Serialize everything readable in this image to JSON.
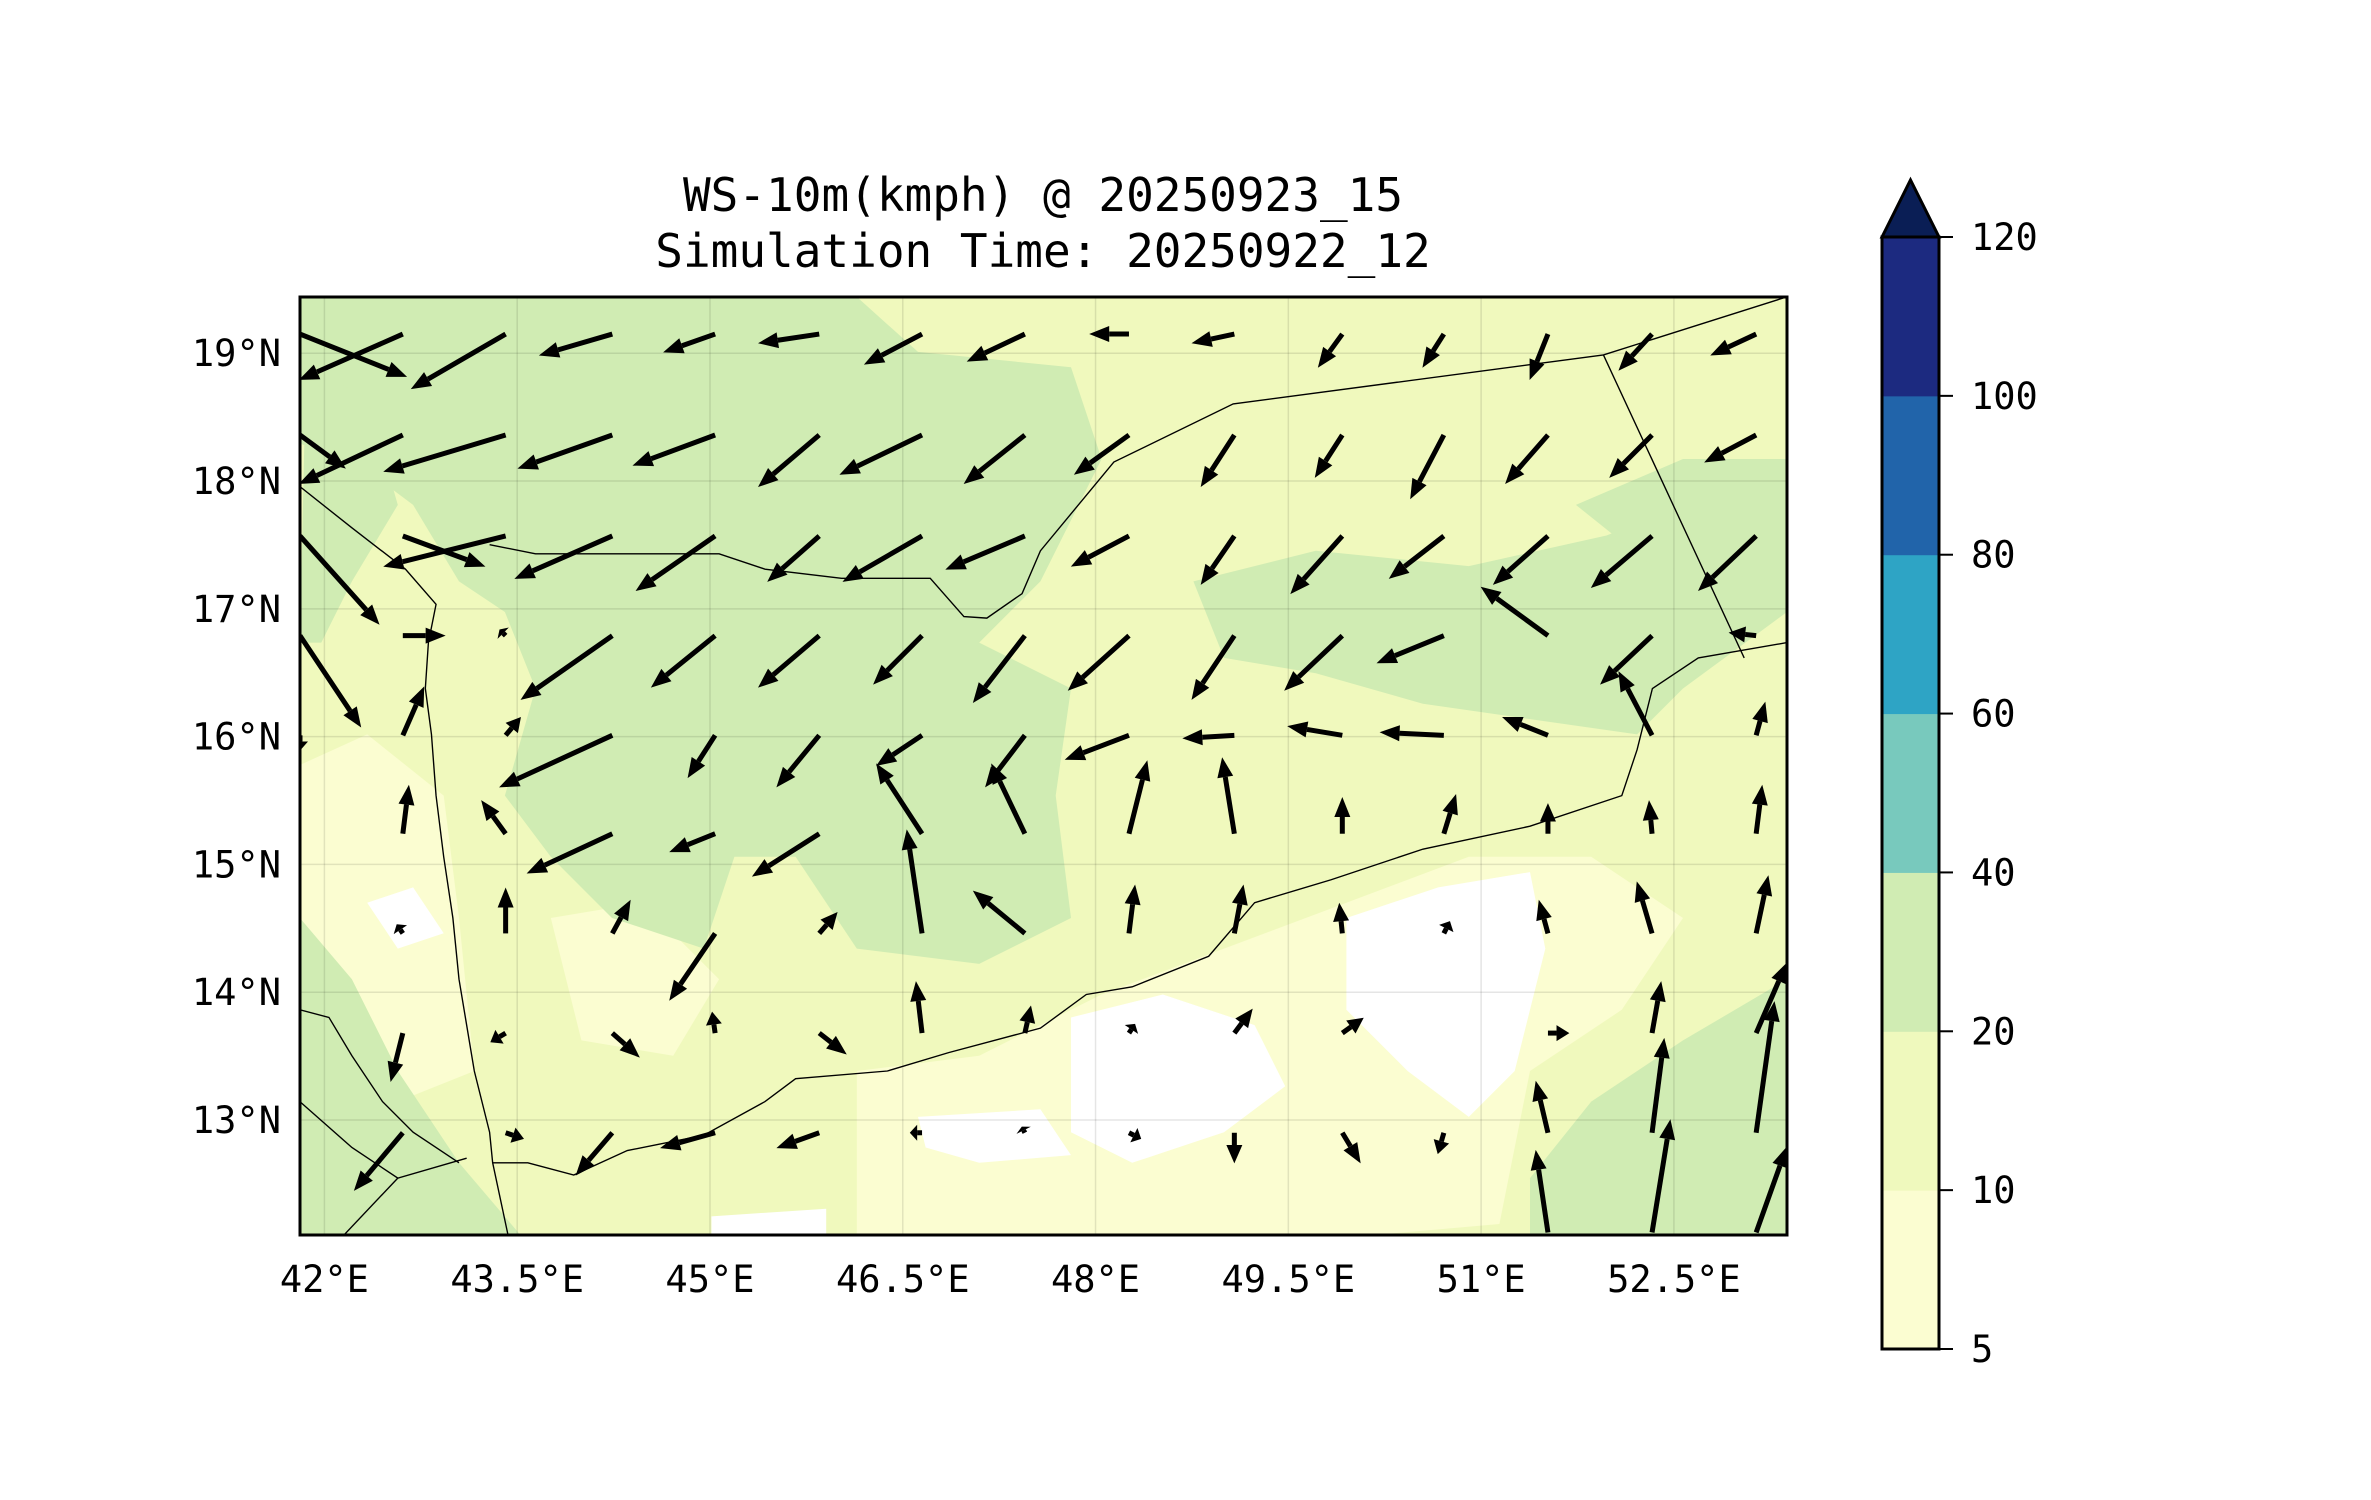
{
  "chart_data": {
    "type": "contourf+quiver",
    "title_line1": "WS-10m(kmph) @ 20250923_15",
    "title_line2": "Simulation Time: 20250922_12",
    "xlim": [
      41.81,
      53.38
    ],
    "ylim": [
      12.1,
      19.44
    ],
    "xticks": [
      42,
      43.5,
      45,
      46.5,
      48,
      49.5,
      51,
      52.5
    ],
    "xtick_labels": [
      "42°E",
      "43.5°E",
      "45°E",
      "46.5°E",
      "48°E",
      "49.5°E",
      "51°E",
      "52.5°E"
    ],
    "yticks": [
      19,
      18,
      17,
      16,
      15,
      14,
      13
    ],
    "ytick_labels": [
      "19°N",
      "18°N",
      "17°N",
      "16°N",
      "15°N",
      "14°N",
      "13°N"
    ],
    "grid": true,
    "colorbar": {
      "levels": [
        5,
        10,
        20,
        40,
        60,
        80,
        100,
        120
      ],
      "labels": [
        "5",
        "10",
        "20",
        "40",
        "60",
        "80",
        "100",
        "120"
      ],
      "colors": [
        "#fbfdd1",
        "#eff9bd",
        "#d0ecb3",
        "#78c9bd",
        "#2ea4c5",
        "#2164aa",
        "#1c2a80"
      ],
      "extend_color": "#0a1e55",
      "extend": "max"
    },
    "field_colors": {
      "lt10": "#fbfdd1",
      "10_20": "#f0f9bd",
      "20_40": "#d0ecb3",
      "below5": "#ffffff"
    },
    "vectors_note": "u,v wind components (relative units)",
    "vectors": [
      [
        41.81,
        19.15,
        35,
        -14
      ],
      [
        42.61,
        19.15,
        -34,
        -15
      ],
      [
        43.41,
        19.15,
        -31,
        -18
      ],
      [
        44.24,
        19.15,
        -24,
        -7
      ],
      [
        45.04,
        19.15,
        -17,
        -6
      ],
      [
        45.85,
        19.15,
        -20,
        -3
      ],
      [
        46.65,
        19.15,
        -19,
        -10
      ],
      [
        47.45,
        19.15,
        -19,
        -9
      ],
      [
        48.26,
        19.15,
        -13,
        0
      ],
      [
        49.08,
        19.15,
        -14,
        -3
      ],
      [
        49.92,
        19.15,
        -8,
        -11
      ],
      [
        50.71,
        19.15,
        -7,
        -11
      ],
      [
        51.52,
        19.15,
        -6,
        -15
      ],
      [
        52.33,
        19.15,
        -11,
        -12
      ],
      [
        53.14,
        19.15,
        -15,
        -7
      ],
      [
        41.81,
        18.36,
        15,
        -11
      ],
      [
        42.61,
        18.36,
        -34,
        -16
      ],
      [
        43.41,
        18.36,
        -40,
        -12
      ],
      [
        44.24,
        18.36,
        -31,
        -11
      ],
      [
        45.04,
        18.36,
        -27,
        -10
      ],
      [
        45.85,
        18.36,
        -20,
        -17
      ],
      [
        46.65,
        18.36,
        -27,
        -13
      ],
      [
        47.45,
        18.36,
        -20,
        -16
      ],
      [
        48.26,
        18.36,
        -18,
        -13
      ],
      [
        49.08,
        18.36,
        -11,
        -17
      ],
      [
        49.92,
        18.36,
        -9,
        -14
      ],
      [
        50.71,
        18.36,
        -11,
        -21
      ],
      [
        51.52,
        18.36,
        -14,
        -16
      ],
      [
        52.33,
        18.36,
        -14,
        -14
      ],
      [
        53.14,
        18.36,
        -17,
        -9
      ],
      [
        41.81,
        17.57,
        26,
        -29
      ],
      [
        42.61,
        17.57,
        27,
        -10
      ],
      [
        43.41,
        17.57,
        -40,
        -10
      ],
      [
        44.24,
        17.57,
        -32,
        -14
      ],
      [
        45.04,
        17.57,
        -26,
        -18
      ],
      [
        45.85,
        17.57,
        -17,
        -15
      ],
      [
        46.65,
        17.57,
        -26,
        -15
      ],
      [
        47.45,
        17.57,
        -26,
        -11
      ],
      [
        48.26,
        17.57,
        -19,
        -10
      ],
      [
        49.08,
        17.57,
        -11,
        -16
      ],
      [
        49.92,
        17.57,
        -17,
        -19
      ],
      [
        50.71,
        17.57,
        -18,
        -14
      ],
      [
        51.52,
        17.57,
        -18,
        -16
      ],
      [
        52.33,
        17.57,
        -20,
        -17
      ],
      [
        53.14,
        17.57,
        -19,
        -18
      ],
      [
        41.81,
        16.79,
        20,
        -30
      ],
      [
        42.61,
        16.79,
        14,
        0
      ],
      [
        43.41,
        16.79,
        -2,
        2
      ],
      [
        44.24,
        16.79,
        -30,
        -21
      ],
      [
        45.04,
        16.79,
        -21,
        -17
      ],
      [
        45.85,
        16.79,
        -20,
        -17
      ],
      [
        46.65,
        16.79,
        -16,
        -16
      ],
      [
        47.45,
        16.79,
        -17,
        -22
      ],
      [
        48.26,
        16.79,
        -20,
        -18
      ],
      [
        49.08,
        16.79,
        -14,
        -21
      ],
      [
        49.92,
        16.79,
        -19,
        -18
      ],
      [
        50.71,
        16.79,
        -22,
        -9
      ],
      [
        51.52,
        16.79,
        -22,
        16
      ],
      [
        52.33,
        16.79,
        -17,
        -16
      ],
      [
        53.14,
        16.79,
        -9,
        1
      ],
      [
        41.81,
        16.01,
        0,
        -5
      ],
      [
        42.61,
        16.01,
        7,
        16
      ],
      [
        43.41,
        16.01,
        5,
        6
      ],
      [
        44.24,
        16.01,
        -37,
        -17
      ],
      [
        45.04,
        16.01,
        -9,
        -14
      ],
      [
        45.85,
        16.01,
        -14,
        -17
      ],
      [
        46.65,
        16.01,
        -15,
        -10
      ],
      [
        47.45,
        16.01,
        -13,
        -17
      ],
      [
        48.26,
        16.01,
        -21,
        -8
      ],
      [
        49.08,
        16.01,
        -17,
        -1
      ],
      [
        49.92,
        16.01,
        -18,
        3
      ],
      [
        50.71,
        16.01,
        -21,
        1
      ],
      [
        51.52,
        16.01,
        -15,
        6
      ],
      [
        52.33,
        16.01,
        -11,
        21
      ],
      [
        53.14,
        16.01,
        3,
        11
      ],
      [
        42.61,
        15.24,
        2,
        16
      ],
      [
        43.41,
        15.24,
        -8,
        11
      ],
      [
        44.24,
        15.24,
        -28,
        -13
      ],
      [
        45.04,
        15.24,
        -15,
        -6
      ],
      [
        45.85,
        15.24,
        -22,
        -14
      ],
      [
        46.65,
        15.24,
        -15,
        23
      ],
      [
        47.45,
        15.24,
        -11,
        23
      ],
      [
        48.26,
        15.24,
        6,
        24
      ],
      [
        49.08,
        15.24,
        -4,
        25
      ],
      [
        49.92,
        15.24,
        0,
        12
      ],
      [
        50.71,
        15.24,
        4,
        13
      ],
      [
        51.52,
        15.24,
        0,
        10
      ],
      [
        52.33,
        15.24,
        -1,
        11
      ],
      [
        53.14,
        15.24,
        2,
        16
      ],
      [
        42.61,
        14.46,
        -2,
        3
      ],
      [
        43.41,
        14.46,
        0,
        15
      ],
      [
        44.24,
        14.46,
        6,
        11
      ],
      [
        45.04,
        14.46,
        -15,
        -22
      ],
      [
        45.85,
        14.46,
        6,
        7
      ],
      [
        46.65,
        14.46,
        -5,
        34
      ],
      [
        47.45,
        14.46,
        -17,
        14
      ],
      [
        48.26,
        14.46,
        2,
        16
      ],
      [
        49.08,
        14.46,
        3,
        16
      ],
      [
        49.92,
        14.46,
        -1,
        10
      ],
      [
        50.71,
        14.46,
        2,
        4
      ],
      [
        51.52,
        14.46,
        -3,
        11
      ],
      [
        52.33,
        14.46,
        -5,
        17
      ],
      [
        53.14,
        14.46,
        4,
        19
      ],
      [
        42.61,
        13.68,
        -4,
        -16
      ],
      [
        43.41,
        13.68,
        -5,
        -3
      ],
      [
        44.24,
        13.68,
        9,
        -8
      ],
      [
        45.04,
        13.68,
        -1,
        7
      ],
      [
        45.85,
        13.68,
        9,
        -7
      ],
      [
        46.65,
        13.68,
        -2,
        17
      ],
      [
        47.45,
        13.68,
        2,
        9
      ],
      [
        48.26,
        13.68,
        2,
        3
      ],
      [
        49.08,
        13.68,
        6,
        8
      ],
      [
        49.92,
        13.68,
        7,
        5
      ],
      [
        50.71,
        13.68,
        0,
        0
      ],
      [
        51.52,
        13.68,
        7,
        0
      ],
      [
        52.33,
        13.68,
        3,
        17
      ],
      [
        53.14,
        13.68,
        10,
        23
      ],
      [
        42.61,
        12.9,
        -16,
        -19
      ],
      [
        43.41,
        12.9,
        6,
        -2
      ],
      [
        44.24,
        12.9,
        -12,
        -14
      ],
      [
        45.04,
        12.9,
        -18,
        -5
      ],
      [
        45.85,
        12.9,
        -14,
        -5
      ],
      [
        46.65,
        12.9,
        -4,
        0
      ],
      [
        47.45,
        12.9,
        -1,
        2
      ],
      [
        48.26,
        12.9,
        4,
        -2
      ],
      [
        49.08,
        12.9,
        0,
        -10
      ],
      [
        49.92,
        12.9,
        6,
        -10
      ],
      [
        50.71,
        12.9,
        -2,
        -7
      ],
      [
        51.52,
        12.9,
        -4,
        17
      ],
      [
        52.33,
        12.9,
        4,
        31
      ],
      [
        53.14,
        12.9,
        6,
        43
      ],
      [
        51.52,
        12.12,
        -4,
        27
      ],
      [
        52.33,
        12.12,
        6,
        37
      ],
      [
        53.14,
        12.12,
        10,
        28
      ]
    ]
  }
}
